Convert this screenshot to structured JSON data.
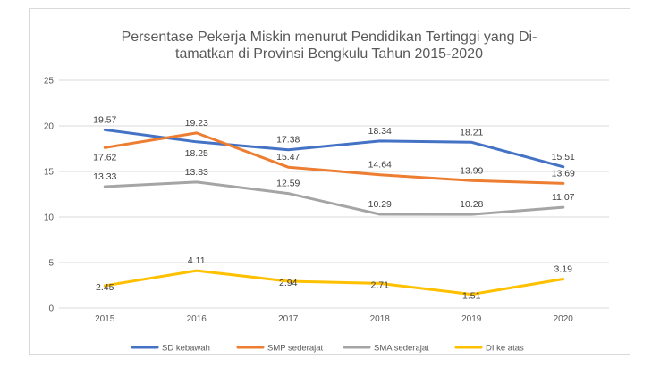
{
  "chart_data": {
    "type": "line",
    "title_lines": [
      "Persentase Pekerja Miskin menurut Pendidikan Tertinggi yang Di-",
      "tamatkan di Provinsi Bengkulu Tahun 2015-2020"
    ],
    "categories": [
      "2015",
      "2016",
      "2017",
      "2018",
      "2019",
      "2020"
    ],
    "ylim": [
      0,
      25
    ],
    "yticks": [
      "0",
      "5",
      "10",
      "15",
      "20",
      "25"
    ],
    "grid": true,
    "legend_position": "bottom",
    "series": [
      {
        "name": "SD kebawah",
        "color": "#4472c4",
        "values": [
          19.57,
          18.25,
          17.38,
          18.34,
          18.21,
          15.51
        ],
        "labels": [
          "19.57",
          "18.25",
          "17.38",
          "18.34",
          "18.21",
          "15.51"
        ]
      },
      {
        "name": "SMP sederajat",
        "color": "#ed7d31",
        "values": [
          17.62,
          19.23,
          15.47,
          14.64,
          13.99,
          13.69
        ],
        "labels": [
          "17.62",
          "19.23",
          "15.47",
          "14.64",
          "13.99",
          "13.69"
        ]
      },
      {
        "name": "SMA sederajat",
        "color": "#a5a5a5",
        "values": [
          13.33,
          13.83,
          12.59,
          10.29,
          10.28,
          11.07
        ],
        "labels": [
          "13.33",
          "13.83",
          "12.59",
          "10.29",
          "10.28",
          "11.07"
        ]
      },
      {
        "name": "DI ke atas",
        "color": "#ffc000",
        "values": [
          2.45,
          4.11,
          2.94,
          2.71,
          1.51,
          3.19
        ],
        "labels": [
          "2.45",
          "4.11",
          "2.94",
          "2.71",
          "1.51",
          "3.19"
        ]
      }
    ]
  }
}
